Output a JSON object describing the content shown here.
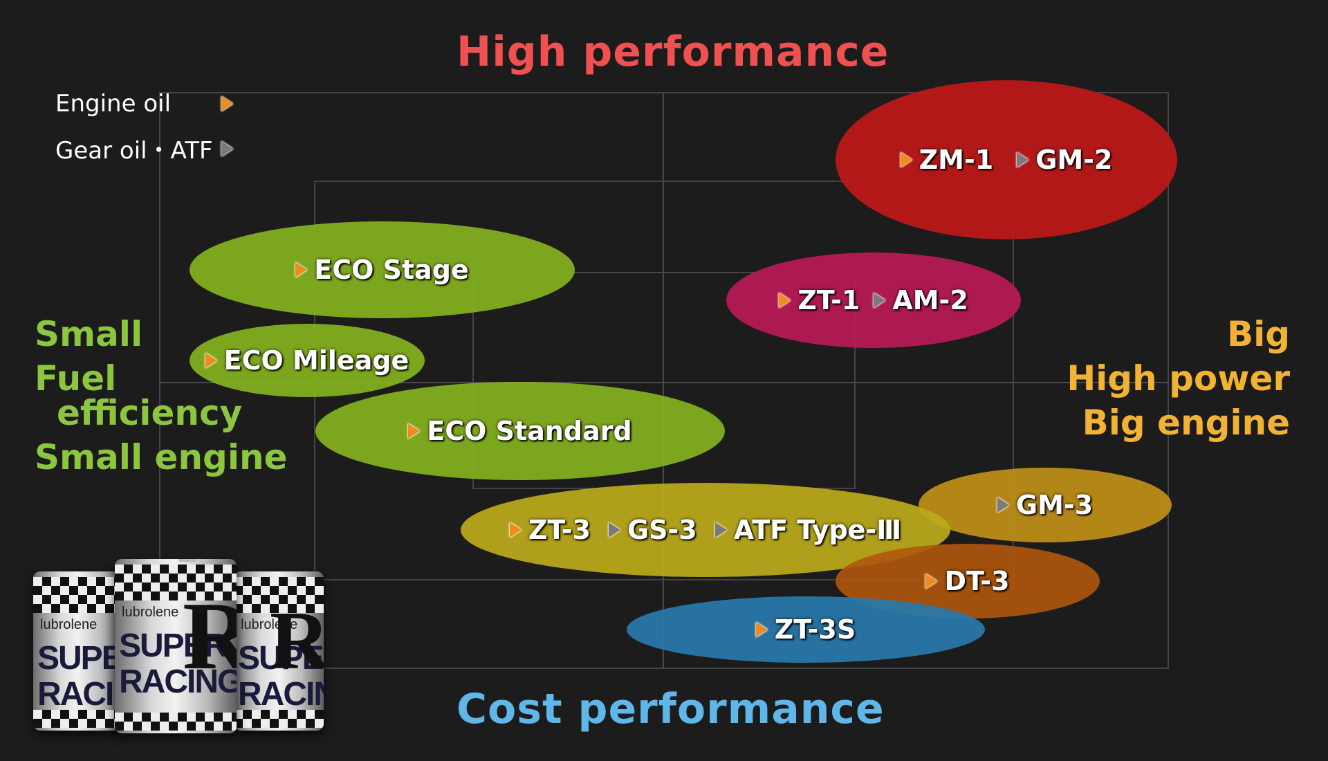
{
  "axes": {
    "top": "High performance",
    "bottom": "Cost performance",
    "left": [
      "Small",
      "Fuel",
      "efficiency",
      "Small engine"
    ],
    "right": [
      "Big",
      "High power",
      "Big engine"
    ]
  },
  "legend": {
    "engine_oil": "Engine oil",
    "gear_oil": "Gear oil・ATF"
  },
  "colors": {
    "top": "#f05050",
    "bottom": "#5eb7e8",
    "left": "#8cc63f",
    "right": "#f2b233",
    "engine_oil_marker": "#f08c1e",
    "gear_oil_marker": "#7a7a7a"
  },
  "groups": {
    "zm": {
      "a": "ZM-1",
      "b": "GM-2"
    },
    "zt1": {
      "a": "ZT-1",
      "b": "AM-2"
    },
    "eco_stage": "ECO Stage",
    "eco_mileage": "ECO Mileage",
    "eco_standard": "ECO Standard",
    "zt3": {
      "a": "ZT-3",
      "b": "GS-3",
      "c": "ATF Type-Ⅲ"
    },
    "gm3": "GM-3",
    "dt3": "DT-3",
    "zt3s": "ZT-3S"
  },
  "cans": {
    "brand": "lubrolene",
    "name_line1": "SUPER",
    "name_line2": "RACING",
    "emblem": "R"
  }
}
